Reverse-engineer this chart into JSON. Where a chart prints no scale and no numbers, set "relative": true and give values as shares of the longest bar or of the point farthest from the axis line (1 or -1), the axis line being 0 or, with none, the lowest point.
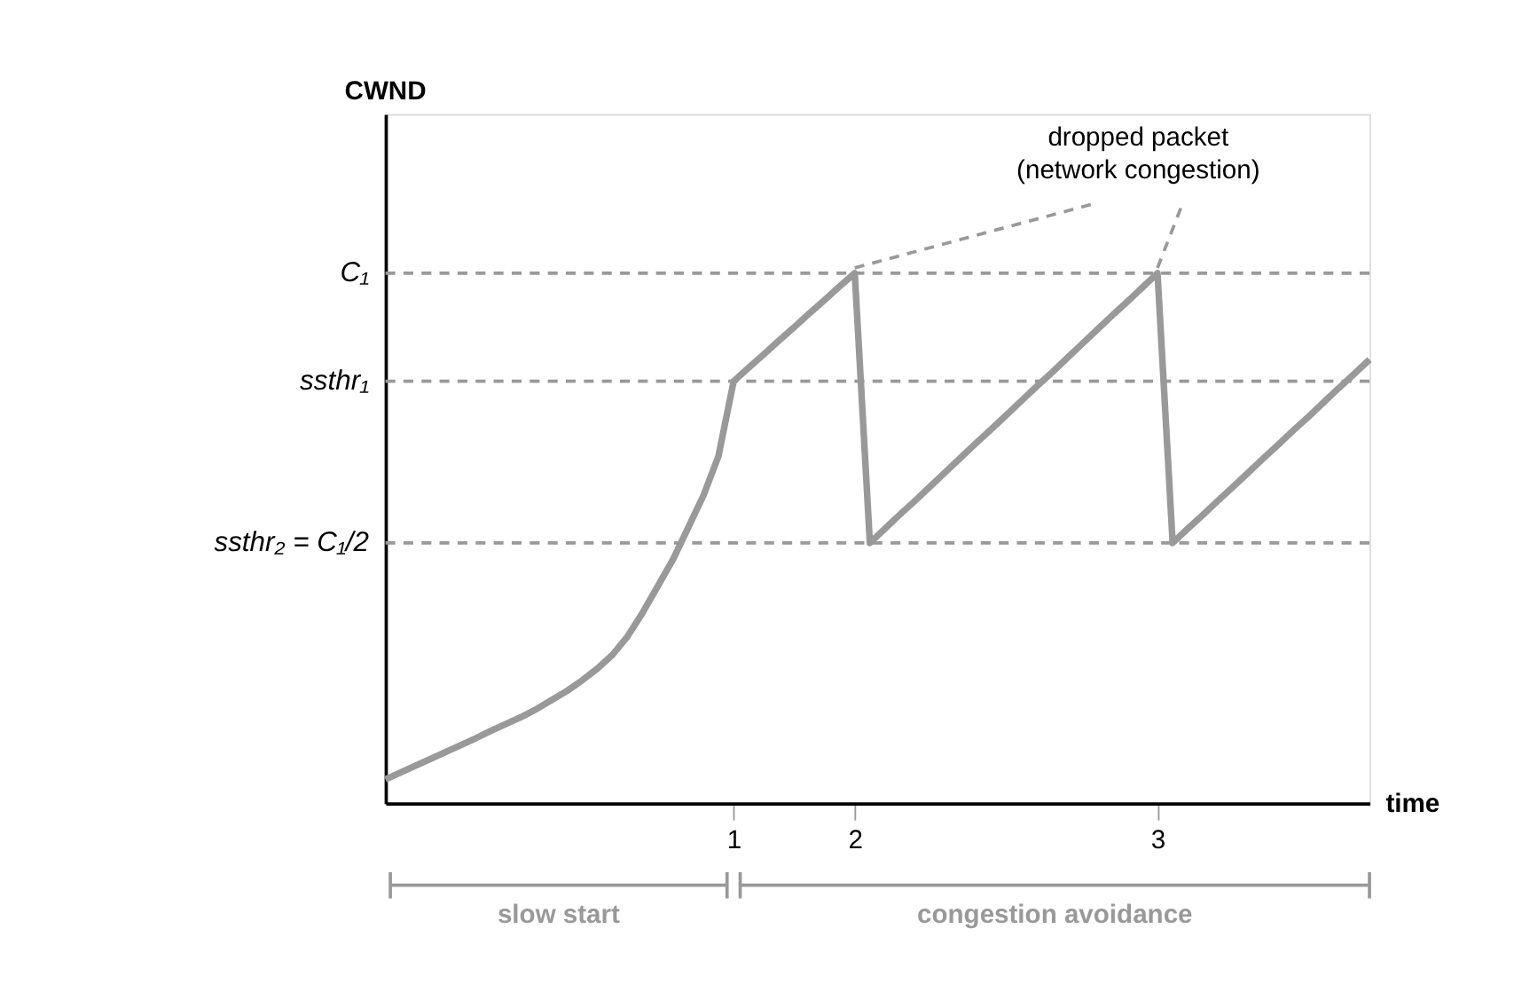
{
  "chart_data": {
    "type": "line",
    "relative": true,
    "xlabel": "time",
    "categories": [
      null,
      null,
      null,
      null,
      null,
      null,
      null,
      null,
      null,
      null,
      null,
      null,
      null,
      null,
      null,
      null,
      null,
      null,
      null,
      null,
      null,
      null,
      null,
      "1",
      null,
      null,
      null,
      null,
      null,
      null,
      null,
      "2",
      null,
      null,
      null,
      null,
      null,
      null,
      null,
      null,
      null,
      null,
      null,
      null,
      null,
      null,
      null,
      null,
      null,
      null,
      null,
      "3",
      null,
      null,
      null,
      null,
      null,
      null,
      null,
      null,
      null,
      null,
      null,
      null,
      null,
      null
    ],
    "series": [
      {
        "color": "#999999",
        "values": [
          0.045,
          0.058,
          0.071,
          0.084,
          0.097,
          0.11,
          0.123,
          0.137,
          0.15,
          0.163,
          0.178,
          0.195,
          0.212,
          0.232,
          0.254,
          0.28,
          0.315,
          0.36,
          0.41,
          0.46,
          0.52,
          0.58,
          0.655,
          0.796,
          0.822,
          0.847,
          0.873,
          0.898,
          0.924,
          0.949,
          0.975,
          1,
          0.491,
          0.518,
          0.545,
          0.571,
          0.598,
          0.625,
          0.652,
          0.679,
          0.705,
          0.732,
          0.759,
          0.786,
          0.812,
          0.839,
          0.866,
          0.893,
          0.92,
          0.946,
          0.973,
          1,
          0.491,
          0.518,
          0.544,
          0.571,
          0.597,
          0.624,
          0.651,
          0.677,
          0.704,
          0.73,
          0.757,
          0.784,
          0.81,
          0.837
        ]
      }
    ],
    "ref_lines": [
      {
        "axis": "y",
        "value": 1,
        "label": "C₁",
        "color": "#999999",
        "line_style": "dashed"
      },
      {
        "axis": "y",
        "value": 0.796,
        "label": "ssthr₁",
        "color": "#999999",
        "line_style": "dashed"
      },
      {
        "axis": "y",
        "value": 0.491,
        "label": "ssthr₂ = C₁/2",
        "color": "#999999",
        "line_style": "dashed"
      }
    ],
    "annotations": [
      "dropped packet\n(network congestion)",
      "slow start",
      "congestion avoidance",
      "CWND"
    ],
    "grid": false,
    "line_style": "solid",
    "marker": "none"
  }
}
